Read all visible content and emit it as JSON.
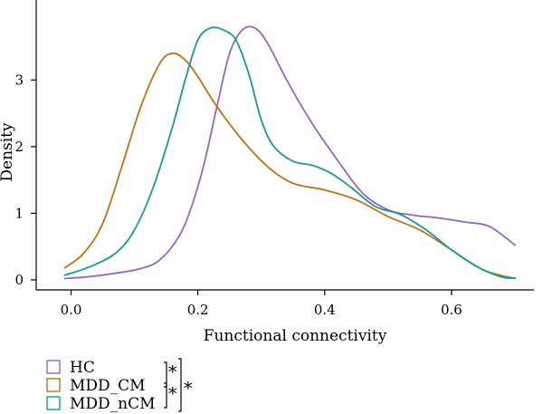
{
  "chart_data": {
    "type": "line",
    "subtype": "density",
    "xlabel": "Functional connectivity",
    "ylabel": "Density",
    "xlim": [
      -0.055,
      0.73
    ],
    "ylim": [
      -0.15,
      4.2
    ],
    "xticks": [
      0.0,
      0.2,
      0.4,
      0.6
    ],
    "xtick_labels": [
      "0.0",
      "0.2",
      "0.4",
      "0.6"
    ],
    "yticks": [
      0,
      1,
      2,
      3
    ],
    "ytick_labels": [
      "0",
      "1",
      "2",
      "3"
    ],
    "grid": false,
    "legend_position": "bottom-left",
    "series": [
      {
        "name": "HC",
        "color": "#9467bd",
        "x": [
          -0.01,
          0.03,
          0.07,
          0.11,
          0.14,
          0.17,
          0.19,
          0.21,
          0.23,
          0.25,
          0.27,
          0.29,
          0.31,
          0.34,
          0.38,
          0.42,
          0.46,
          0.5,
          0.54,
          0.58,
          0.62,
          0.66,
          0.7
        ],
        "y": [
          0.02,
          0.05,
          0.1,
          0.17,
          0.3,
          0.65,
          1.1,
          1.75,
          2.6,
          3.4,
          3.75,
          3.78,
          3.55,
          3.0,
          2.35,
          1.8,
          1.3,
          1.05,
          0.97,
          0.93,
          0.87,
          0.8,
          0.52
        ]
      },
      {
        "name": "MDD_CM",
        "color": "#b8731c",
        "x": [
          -0.01,
          0.02,
          0.05,
          0.08,
          0.11,
          0.14,
          0.16,
          0.18,
          0.2,
          0.23,
          0.27,
          0.31,
          0.35,
          0.4,
          0.45,
          0.5,
          0.55,
          0.6,
          0.65,
          0.7
        ],
        "y": [
          0.18,
          0.4,
          0.85,
          1.7,
          2.6,
          3.25,
          3.4,
          3.3,
          3.05,
          2.6,
          2.1,
          1.7,
          1.45,
          1.35,
          1.2,
          0.95,
          0.75,
          0.45,
          0.15,
          0.02
        ]
      },
      {
        "name": "MDD_nCM",
        "color": "#1a9990",
        "x": [
          -0.01,
          0.03,
          0.07,
          0.1,
          0.13,
          0.16,
          0.18,
          0.2,
          0.22,
          0.24,
          0.26,
          0.28,
          0.3,
          0.32,
          0.35,
          0.38,
          0.41,
          0.44,
          0.48,
          0.52,
          0.56,
          0.6,
          0.64,
          0.68,
          0.7
        ],
        "y": [
          0.07,
          0.2,
          0.4,
          0.75,
          1.4,
          2.3,
          3.0,
          3.6,
          3.78,
          3.75,
          3.6,
          3.1,
          2.4,
          2.0,
          1.78,
          1.72,
          1.6,
          1.4,
          1.1,
          0.98,
          0.75,
          0.45,
          0.2,
          0.04,
          0.03
        ]
      }
    ],
    "significance": {
      "pair_mark": "*",
      "outer_mark": "*"
    }
  }
}
